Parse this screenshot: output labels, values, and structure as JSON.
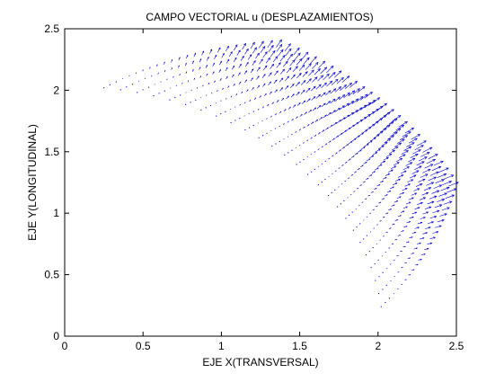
{
  "figure": {
    "background": "#ffffff",
    "axes_background": "#ffffff",
    "frame_color": "#000000",
    "arrow_color": "#0000cc"
  },
  "chart_data": {
    "type": "quiver",
    "title": "CAMPO VECTORIAL u (DESPLAZAMIENTOS)",
    "xlabel": "EJE X(TRANSVERSAL)",
    "ylabel": "EJE Y(LONGITUDINAL)",
    "xlim": [
      0,
      2.5
    ],
    "ylim": [
      0,
      2.5
    ],
    "xticks": [
      0,
      0.5,
      1,
      1.5,
      2,
      2.5
    ],
    "yticks": [
      0,
      0.5,
      1,
      1.5,
      2,
      2.5
    ],
    "xtick_labels": [
      "0",
      "0.5",
      "1",
      "1.5",
      "2",
      "2.5"
    ],
    "ytick_labels": [
      "0",
      "0.5",
      "1",
      "1.5",
      "2",
      "2.5"
    ],
    "grid": false,
    "box": true,
    "field": {
      "region": "annular sector in first quadrant",
      "inner_arc_start": [
        0.25,
        2.02
      ],
      "inner_arc_end": [
        2.02,
        0.24
      ],
      "outer_arc_start": [
        1.35,
        2.35
      ],
      "outer_arc_end": [
        2.45,
        1.22
      ],
      "radial_rows": 24,
      "angular_columns": 26,
      "vector_direction": "toward upper-right",
      "max_vector_length": 0.07
    }
  }
}
